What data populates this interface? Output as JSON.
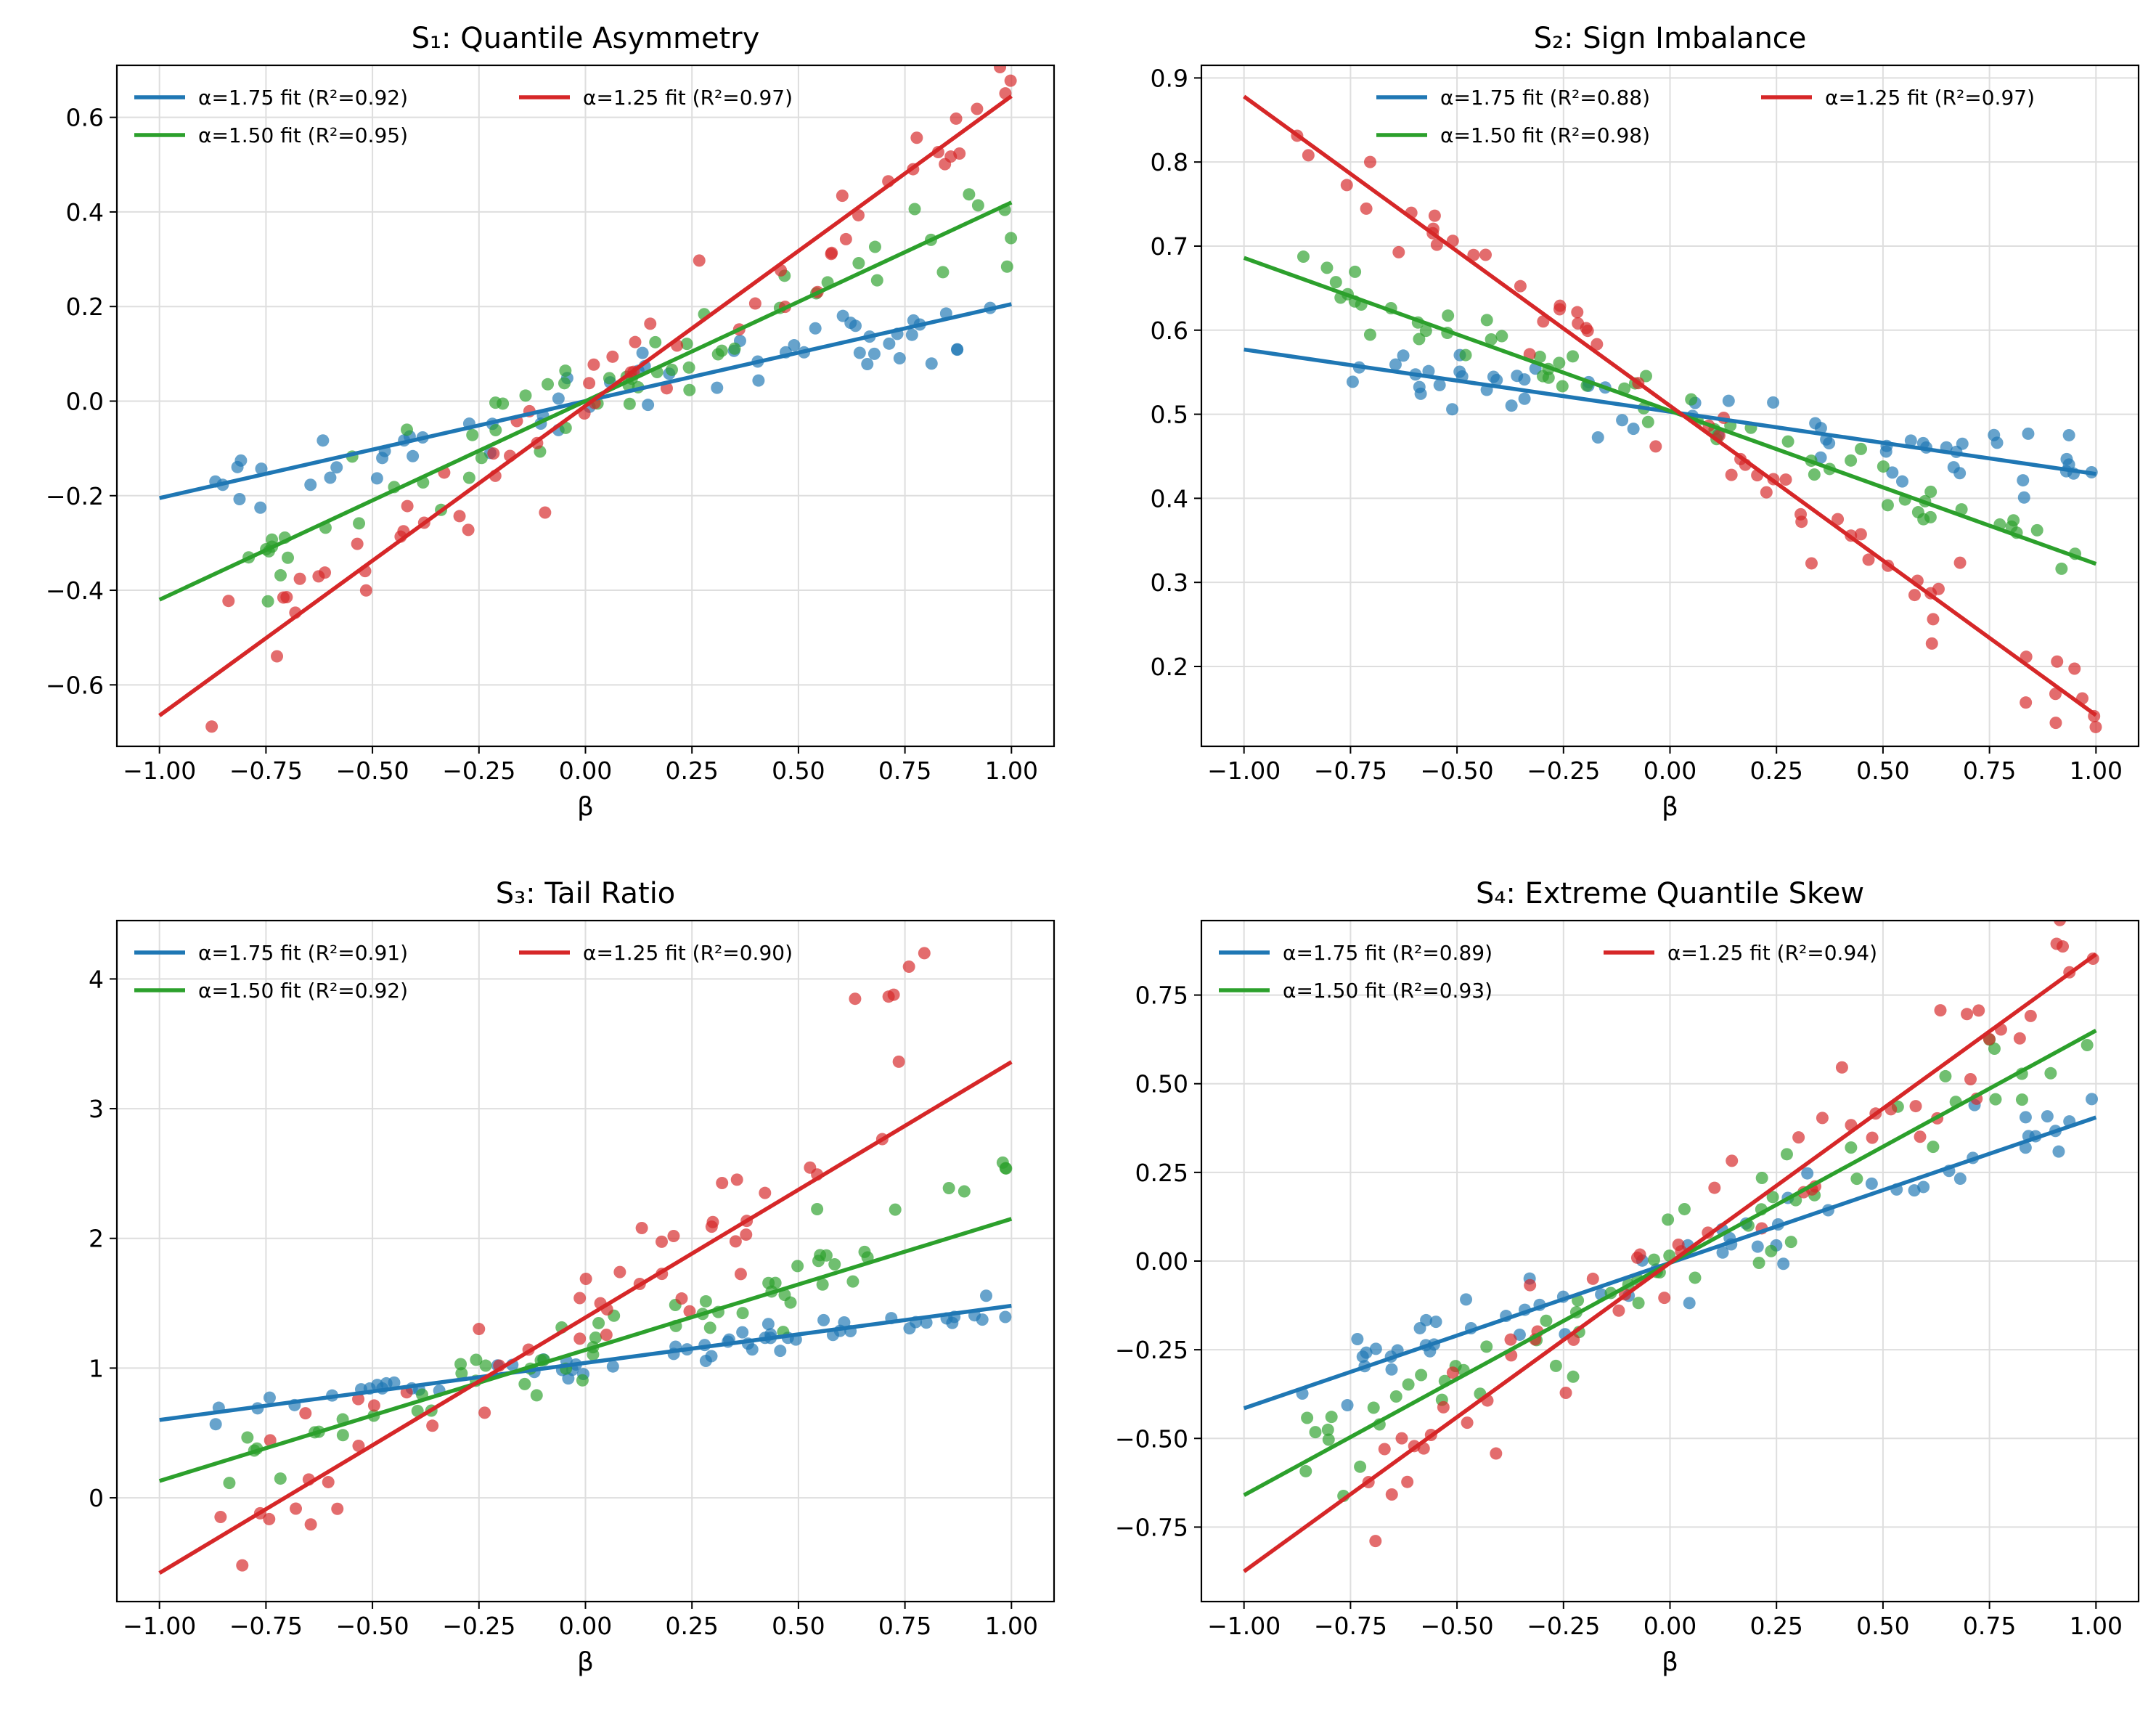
{
  "colors": {
    "blue": "#1f77b4",
    "green": "#2ca02c",
    "red": "#d62728",
    "grid": "#dedede",
    "frame": "#000000"
  },
  "chart_data": [
    {
      "type": "scatter",
      "title": "S₁: Quantile Asymmetry",
      "xlabel": "β",
      "ylabel": "",
      "xlim": [
        -1.1,
        1.1
      ],
      "ylim": [
        -0.73,
        0.71
      ],
      "xticks": [
        -1.0,
        -0.75,
        -0.5,
        -0.25,
        0.0,
        0.25,
        0.5,
        0.75,
        1.0
      ],
      "xtick_labels": [
        "−1.00",
        "−0.75",
        "−0.50",
        "−0.25",
        "0.00",
        "0.25",
        "0.50",
        "0.75",
        "1.00"
      ],
      "yticks": [
        -0.6,
        -0.4,
        -0.2,
        0.0,
        0.2,
        0.4,
        0.6
      ],
      "ytick_labels": [
        "−0.6",
        "−0.4",
        "−0.2",
        "0.0",
        "0.2",
        "0.4",
        "0.6"
      ],
      "grid": true,
      "legend_position": "upper-left",
      "series": [
        {
          "name": "α=1.75 fit (R²=0.92)",
          "color": "blue",
          "fit": {
            "intercept": 0.0,
            "slope": 0.205
          },
          "noise": 0.035,
          "shape": 1.0,
          "seed": 11
        },
        {
          "name": "α=1.50 fit (R²=0.95)",
          "color": "green",
          "fit": {
            "intercept": 0.0,
            "slope": 0.42
          },
          "noise": 0.055,
          "shape": 1.0,
          "seed": 12
        },
        {
          "name": "α=1.25 fit (R²=0.97)",
          "color": "red",
          "fit": {
            "intercept": -0.01,
            "slope": 0.655
          },
          "noise": 0.06,
          "shape": 1.0,
          "seed": 13
        }
      ]
    },
    {
      "type": "scatter",
      "title": "S₂: Sign Imbalance",
      "xlabel": "β",
      "ylabel": "",
      "xlim": [
        -1.1,
        1.1
      ],
      "ylim": [
        0.105,
        0.915
      ],
      "xticks": [
        -1.0,
        -0.75,
        -0.5,
        -0.25,
        0.0,
        0.25,
        0.5,
        0.75,
        1.0
      ],
      "xtick_labels": [
        "−1.00",
        "−0.75",
        "−0.50",
        "−0.25",
        "0.00",
        "0.25",
        "0.50",
        "0.75",
        "1.00"
      ],
      "yticks": [
        0.2,
        0.3,
        0.4,
        0.5,
        0.6,
        0.7,
        0.8,
        0.9
      ],
      "ytick_labels": [
        "0.2",
        "0.3",
        "0.4",
        "0.5",
        "0.6",
        "0.7",
        "0.8",
        "0.9"
      ],
      "grid": true,
      "legend_position": "upper-right",
      "series": [
        {
          "name": "α=1.75 fit (R²=0.88)",
          "color": "blue",
          "fit": {
            "intercept": 0.503,
            "slope": -0.074
          },
          "noise": 0.018,
          "shape": 1.0,
          "seed": 21
        },
        {
          "name": "α=1.50 fit (R²=0.98)",
          "color": "green",
          "fit": {
            "intercept": 0.504,
            "slope": -0.182
          },
          "noise": 0.018,
          "shape": 1.0,
          "seed": 22
        },
        {
          "name": "α=1.25 fit (R²=0.97)",
          "color": "red",
          "fit": {
            "intercept": 0.51,
            "slope": -0.368
          },
          "noise": 0.03,
          "shape": 1.0,
          "seed": 23
        }
      ]
    },
    {
      "type": "scatter",
      "title": "S₃: Tail Ratio",
      "xlabel": "β",
      "ylabel": "",
      "xlim": [
        -1.1,
        1.1
      ],
      "ylim": [
        -0.8,
        4.45
      ],
      "xticks": [
        -1.0,
        -0.75,
        -0.5,
        -0.25,
        0.0,
        0.25,
        0.5,
        0.75,
        1.0
      ],
      "xtick_labels": [
        "−1.00",
        "−0.75",
        "−0.50",
        "−0.25",
        "0.00",
        "0.25",
        "0.50",
        "0.75",
        "1.00"
      ],
      "yticks": [
        0,
        1,
        2,
        3,
        4
      ],
      "ytick_labels": [
        "0",
        "1",
        "2",
        "3",
        "4"
      ],
      "grid": true,
      "legend_position": "upper-left",
      "series": [
        {
          "name": "α=1.75 fit (R²=0.91)",
          "color": "blue",
          "fit": {
            "intercept": 1.04,
            "slope": 0.44
          },
          "noise": 0.05,
          "shape": 1.0,
          "seed": 31
        },
        {
          "name": "α=1.50 fit (R²=0.92)",
          "color": "green",
          "fit": {
            "intercept": 1.14,
            "slope": 1.01
          },
          "noise": 0.12,
          "shape": 1.45,
          "seed": 32
        },
        {
          "name": "α=1.25 fit (R²=0.90)",
          "color": "red",
          "fit": {
            "intercept": 1.39,
            "slope": 1.97
          },
          "noise": 0.22,
          "shape": 2.4,
          "seed": 33
        }
      ]
    },
    {
      "type": "scatter",
      "title": "S₄: Extreme Quantile Skew",
      "xlabel": "β",
      "ylabel": "",
      "xlim": [
        -1.1,
        1.1
      ],
      "ylim": [
        -0.96,
        0.96
      ],
      "xticks": [
        -1.0,
        -0.75,
        -0.5,
        -0.25,
        0.0,
        0.25,
        0.5,
        0.75,
        1.0
      ],
      "xtick_labels": [
        "−1.00",
        "−0.75",
        "−0.50",
        "−0.25",
        "0.00",
        "0.25",
        "0.50",
        "0.75",
        "1.00"
      ],
      "yticks": [
        -0.75,
        -0.5,
        -0.25,
        0.0,
        0.25,
        0.5,
        0.75
      ],
      "ytick_labels": [
        "−0.75",
        "−0.50",
        "−0.25",
        "0.00",
        "0.25",
        "0.50",
        "0.75"
      ],
      "grid": true,
      "legend_position": "upper-left",
      "series": [
        {
          "name": "α=1.75 fit (R²=0.89)",
          "color": "blue",
          "fit": {
            "intercept": -0.005,
            "slope": 0.41
          },
          "noise": 0.06,
          "shape": 1.0,
          "seed": 41
        },
        {
          "name": "α=1.50 fit (R²=0.93)",
          "color": "green",
          "fit": {
            "intercept": -0.005,
            "slope": 0.655
          },
          "noise": 0.08,
          "shape": 1.0,
          "seed": 42
        },
        {
          "name": "α=1.25 fit (R²=0.94)",
          "color": "red",
          "fit": {
            "intercept": -0.005,
            "slope": 0.87
          },
          "noise": 0.09,
          "shape": 1.0,
          "seed": 43
        }
      ]
    }
  ]
}
